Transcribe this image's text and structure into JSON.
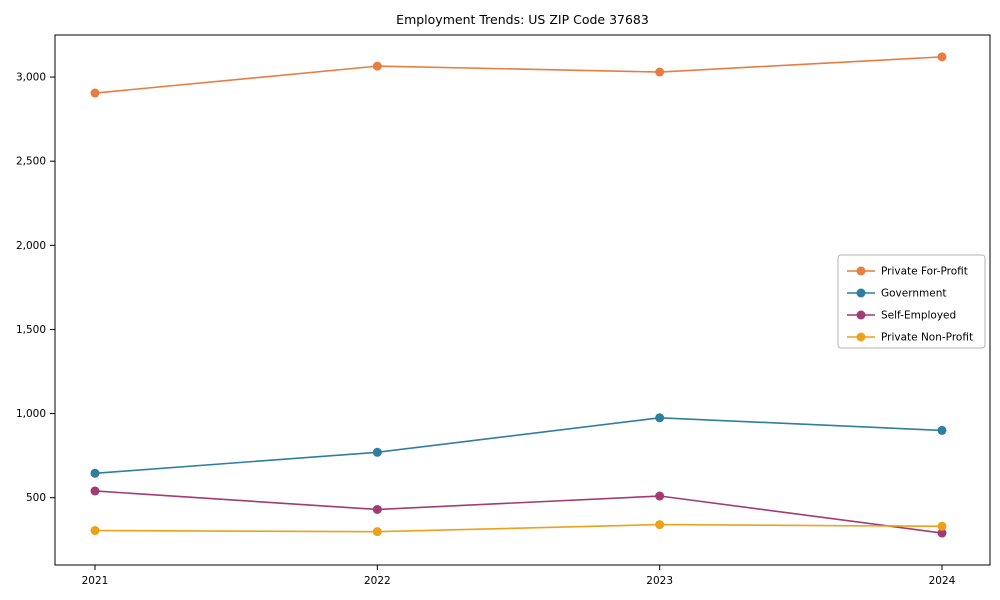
{
  "chart_data": {
    "type": "line",
    "title": "Employment Trends: US ZIP Code 37683",
    "x_labels": [
      "2021",
      "2022",
      "2023",
      "2024"
    ],
    "series": [
      {
        "name": "Private For-Profit",
        "color": "#e87d41",
        "values": [
          2905,
          3065,
          3030,
          3120
        ]
      },
      {
        "name": "Government",
        "color": "#2e7f9e",
        "values": [
          645,
          770,
          975,
          900
        ]
      },
      {
        "name": "Self-Employed",
        "color": "#a23b72",
        "values": [
          540,
          430,
          510,
          290
        ]
      },
      {
        "name": "Private Non-Profit",
        "color": "#eda019",
        "values": [
          305,
          298,
          340,
          330
        ]
      }
    ],
    "ylim": [
      100,
      3250
    ],
    "yticks": [
      500,
      1000,
      1500,
      2000,
      2500,
      3000
    ],
    "ytick_labels": [
      "500",
      "1,000",
      "1,500",
      "2,000",
      "2,500",
      "3,000"
    ],
    "xlabel": "",
    "ylabel": "",
    "grid": false,
    "legend_position": "middle-right",
    "axis_color": "#000000",
    "legend_border_color": "#b3b3b3"
  }
}
